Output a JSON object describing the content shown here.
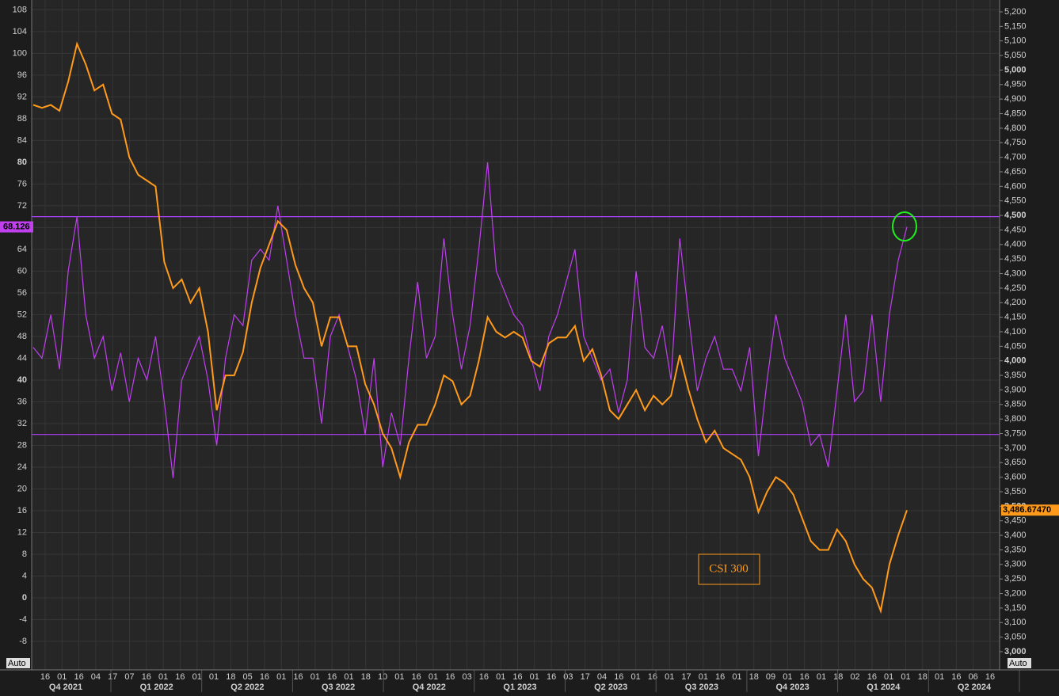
{
  "chart_data": {
    "type": "line",
    "grid": true,
    "ylim": [
      -10.62,
      109.8
    ],
    "yticks": [
      -8,
      -4,
      0,
      4,
      8,
      12,
      16,
      20,
      24,
      28,
      32,
      36,
      40,
      44,
      48,
      52,
      56,
      60,
      64,
      68,
      72,
      76,
      80,
      84,
      88,
      92,
      96,
      100,
      104,
      108
    ],
    "y2lim": [
      2986.4,
      5240.8
    ],
    "y2ticks": [
      {
        "value": 3000,
        "label": "3,000"
      },
      {
        "value": 3050,
        "label": "3,050"
      },
      {
        "value": 3100,
        "label": "3,100"
      },
      {
        "value": 3150,
        "label": "3,150"
      },
      {
        "value": 3200,
        "label": "3,200"
      },
      {
        "value": 3250,
        "label": "3,250"
      },
      {
        "value": 3300,
        "label": "3,300"
      },
      {
        "value": 3350,
        "label": "3,350"
      },
      {
        "value": 3400,
        "label": "3,400"
      },
      {
        "value": 3450,
        "label": "3,450"
      },
      {
        "value": 3500,
        "label": "3,500"
      },
      {
        "value": 3550,
        "label": "3,550"
      },
      {
        "value": 3600,
        "label": "3,600"
      },
      {
        "value": 3650,
        "label": "3,650"
      },
      {
        "value": 3700,
        "label": "3,700"
      },
      {
        "value": 3750,
        "label": "3,750"
      },
      {
        "value": 3800,
        "label": "3,800"
      },
      {
        "value": 3850,
        "label": "3,850"
      },
      {
        "value": 3900,
        "label": "3,900"
      },
      {
        "value": 3950,
        "label": "3,950"
      },
      {
        "value": 4000,
        "label": "4,000"
      },
      {
        "value": 4050,
        "label": "4,050"
      },
      {
        "value": 4100,
        "label": "4,100"
      },
      {
        "value": 4150,
        "label": "4,150"
      },
      {
        "value": 4200,
        "label": "4,200"
      },
      {
        "value": 4250,
        "label": "4,250"
      },
      {
        "value": 4300,
        "label": "4,300"
      },
      {
        "value": 4350,
        "label": "4,350"
      },
      {
        "value": 4400,
        "label": "4,400"
      },
      {
        "value": 4450,
        "label": "4,450"
      },
      {
        "value": 4500,
        "label": "4,500"
      },
      {
        "value": 4550,
        "label": "4,550"
      },
      {
        "value": 4600,
        "label": "4,600"
      },
      {
        "value": 4650,
        "label": "4,650"
      },
      {
        "value": 4700,
        "label": "4,700"
      },
      {
        "value": 4750,
        "label": "4,750"
      },
      {
        "value": 4800,
        "label": "4,800"
      },
      {
        "value": 4850,
        "label": "4,850"
      },
      {
        "value": 4900,
        "label": "4,900"
      },
      {
        "value": 4950,
        "label": "4,950"
      },
      {
        "value": 5000,
        "label": "5,000"
      },
      {
        "value": 5050,
        "label": "5,050"
      },
      {
        "value": 5100,
        "label": "5,100"
      },
      {
        "value": 5150,
        "label": "5,150"
      },
      {
        "value": 5200,
        "label": "5,200"
      }
    ],
    "hlines": [
      70,
      30
    ],
    "hline_color": "#b040ff",
    "x_tick_labels": [
      "16",
      "01",
      "16",
      "04",
      "17",
      "07",
      "16",
      "01",
      "16",
      "01",
      "01",
      "18",
      "05",
      "16",
      "01",
      "16",
      "01",
      "16",
      "01",
      "18",
      "10",
      "01",
      "16",
      "01",
      "16",
      "03",
      "16",
      "01",
      "16",
      "01",
      "16",
      "03",
      "17",
      "04",
      "16",
      "01",
      "16",
      "01",
      "17",
      "01",
      "16",
      "01",
      "18",
      "09",
      "01",
      "16",
      "01",
      "18",
      "02",
      "16",
      "01",
      "01",
      "18",
      "01",
      "16",
      "06",
      "16"
    ],
    "quarter_labels": [
      "Q4 2021",
      "Q1 2022",
      "Q2 2022",
      "Q3 2022",
      "Q4 2022",
      "Q1 2023",
      "Q2 2023",
      "Q3 2023",
      "Q4 2023",
      "Q1 2024",
      "Q2 2024"
    ],
    "auto_labels": [
      "Auto",
      "Auto"
    ],
    "series": [
      {
        "color": "#c040f0",
        "last_value_label": "68.126",
        "values": [
          46,
          44,
          52,
          42,
          60,
          70,
          52,
          44,
          48,
          38,
          45,
          36,
          44,
          40,
          48,
          36,
          22,
          40,
          44,
          48,
          40,
          28,
          44,
          52,
          50,
          62,
          64,
          62,
          72,
          62,
          52,
          44,
          44,
          32,
          48,
          52,
          46,
          40,
          30,
          44,
          24,
          34,
          28,
          44,
          58,
          44,
          48,
          66,
          52,
          42,
          50,
          64,
          80,
          60,
          56,
          52,
          50,
          44,
          38,
          48,
          52,
          58,
          64,
          48,
          44,
          40,
          42,
          34,
          40,
          60,
          46,
          44,
          50,
          40,
          66,
          52,
          38,
          44,
          48,
          42,
          42,
          38,
          46,
          26,
          40,
          52,
          44,
          40,
          36,
          28,
          30,
          24,
          38,
          52,
          36,
          38,
          52,
          36,
          52,
          62,
          68.126
        ]
      },
      {
        "name": "CSI 300",
        "color": "#ff9a1a",
        "axis": "y2",
        "last_value_label": "3,486.67470",
        "values": [
          4880,
          4870,
          4880,
          4860,
          4960,
          5090,
          5020,
          4930,
          4950,
          4850,
          4830,
          4700,
          4640,
          4620,
          4600,
          4340,
          4250,
          4280,
          4200,
          4250,
          4100,
          3830,
          3950,
          3950,
          4030,
          4200,
          4320,
          4400,
          4480,
          4450,
          4330,
          4250,
          4200,
          4050,
          4150,
          4150,
          4050,
          4050,
          3920,
          3850,
          3750,
          3700,
          3600,
          3720,
          3780,
          3780,
          3850,
          3950,
          3930,
          3850,
          3880,
          4000,
          4150,
          4100,
          4080,
          4100,
          4080,
          4000,
          3980,
          4060,
          4080,
          4080,
          4120,
          4000,
          4040,
          3950,
          3830,
          3800,
          3850,
          3900,
          3830,
          3880,
          3850,
          3880,
          4020,
          3900,
          3800,
          3720,
          3760,
          3700,
          3680,
          3660,
          3600,
          3480,
          3550,
          3600,
          3580,
          3540,
          3460,
          3380,
          3350,
          3350,
          3420,
          3380,
          3300,
          3250,
          3220,
          3140,
          3300,
          3400,
          3486.6747
        ]
      }
    ]
  }
}
